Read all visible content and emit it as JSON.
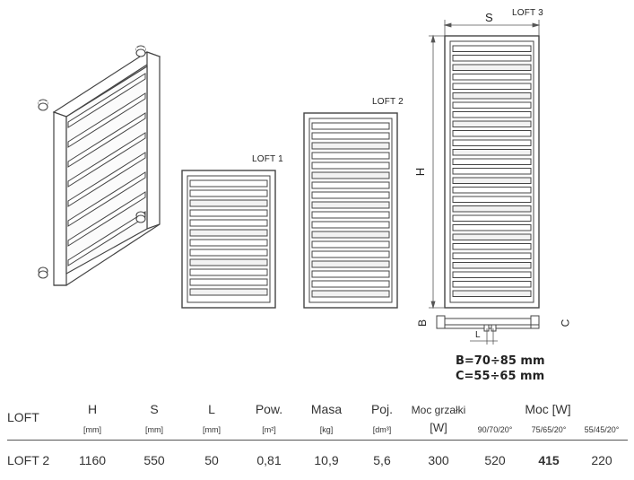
{
  "drawing": {
    "models": [
      "LOFT 1",
      "LOFT 2",
      "LOFT 3"
    ],
    "dims": {
      "s": "S",
      "h": "H",
      "b": "B",
      "c": "C",
      "l": "L"
    },
    "ranges": [
      "B=70÷85 mm",
      "C=55÷65 mm"
    ]
  },
  "table": {
    "name_header": "LOFT",
    "columns": [
      {
        "label": "H",
        "unit": "[mm]"
      },
      {
        "label": "S",
        "unit": "[mm]"
      },
      {
        "label": "L",
        "unit": "[mm]"
      },
      {
        "label": "Pow.",
        "unit": "[m²]"
      },
      {
        "label": "Masa",
        "unit": "[kg]"
      },
      {
        "label": "Poj.",
        "unit": "[dm³]"
      },
      {
        "label": "Moc grzałki",
        "unit": "[W]"
      }
    ],
    "power_header": "Moc [W]",
    "power_sub": [
      "90/70/20°",
      "75/65/20°",
      "55/45/20°"
    ],
    "row": [
      "LOFT 2",
      "1160",
      "550",
      "50",
      "0,81",
      "10,9",
      "5,6",
      "300",
      "520",
      "415",
      "220"
    ]
  }
}
